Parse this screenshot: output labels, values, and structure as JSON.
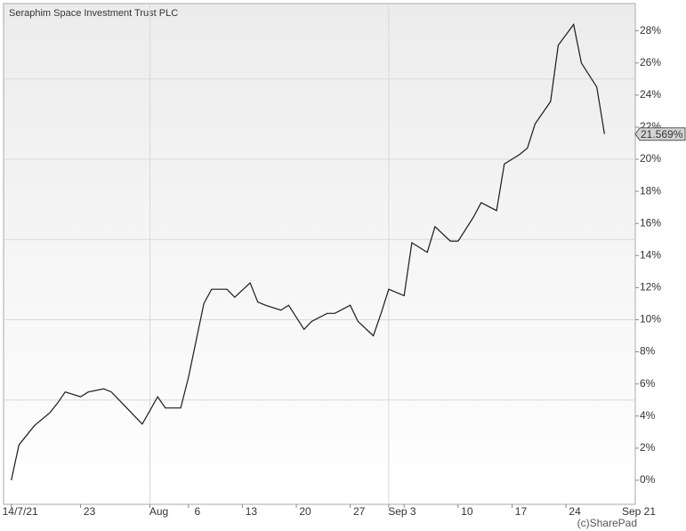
{
  "chart_data": {
    "type": "line",
    "title": "Seraphim Space Investment Trust PLC",
    "credit": "(c)SharePad",
    "x_period_label": "Sep 21",
    "x": [
      "2021-07-14",
      "2021-07-15",
      "2021-07-17",
      "2021-07-19",
      "2021-07-20",
      "2021-07-21",
      "2021-07-23",
      "2021-07-24",
      "2021-07-26",
      "2021-07-27",
      "2021-07-29",
      "2021-07-30",
      "2021-07-31",
      "2021-08-02",
      "2021-08-03",
      "2021-08-05",
      "2021-08-06",
      "2021-08-08",
      "2021-08-09",
      "2021-08-11",
      "2021-08-12",
      "2021-08-14",
      "2021-08-15",
      "2021-08-16",
      "2021-08-18",
      "2021-08-19",
      "2021-08-21",
      "2021-08-22",
      "2021-08-24",
      "2021-08-25",
      "2021-08-27",
      "2021-08-28",
      "2021-08-30",
      "2021-08-31",
      "2021-09-01",
      "2021-09-03",
      "2021-09-04",
      "2021-09-06",
      "2021-09-07",
      "2021-09-09",
      "2021-09-10",
      "2021-09-12",
      "2021-09-13",
      "2021-09-15",
      "2021-09-16",
      "2021-09-18",
      "2021-09-19",
      "2021-09-20",
      "2021-09-22",
      "2021-09-23",
      "2021-09-25",
      "2021-09-26",
      "2021-09-28",
      "2021-09-29"
    ],
    "values": [
      0,
      2.2,
      3.4,
      4.2,
      4.8,
      5.5,
      5.2,
      5.5,
      5.7,
      5.5,
      4.5,
      4.0,
      3.5,
      5.2,
      4.5,
      4.5,
      6.4,
      11.0,
      11.9,
      11.9,
      11.4,
      12.3,
      11.1,
      10.9,
      10.6,
      10.9,
      9.4,
      9.9,
      10.4,
      10.4,
      10.9,
      9.9,
      9.0,
      10.4,
      11.9,
      11.5,
      14.8,
      14.2,
      15.8,
      14.9,
      14.9,
      16.4,
      17.3,
      16.8,
      19.7,
      20.3,
      20.7,
      22.2,
      23.6,
      27.1,
      28.4,
      26.0,
      24.5,
      21.569
    ],
    "last_label": "21.569%",
    "color": "#1a1a1a",
    "xlim": [
      "2021-07-13",
      "2021-10-03"
    ],
    "xticks": [
      {
        "value": "2021-07-14",
        "label": "14/7/21"
      },
      {
        "value": "2021-07-23",
        "label": "23"
      },
      {
        "value": "2021-08-01",
        "label": "Aug"
      },
      {
        "value": "2021-08-06",
        "label": "6"
      },
      {
        "value": "2021-08-13",
        "label": "13"
      },
      {
        "value": "2021-08-20",
        "label": "20"
      },
      {
        "value": "2021-08-27",
        "label": "27"
      },
      {
        "value": "2021-09-01",
        "label": "Sep"
      },
      {
        "value": "2021-09-03",
        "label": "3"
      },
      {
        "value": "2021-09-10",
        "label": "10"
      },
      {
        "value": "2021-09-17",
        "label": "17"
      },
      {
        "value": "2021-09-24",
        "label": "24"
      }
    ],
    "xgrid": [
      "2021-08-01",
      "2021-09-01"
    ],
    "ylim": [
      -1.5,
      29.7
    ],
    "yticks": [
      {
        "value": 0,
        "label": "0%"
      },
      {
        "value": 2,
        "label": "2%"
      },
      {
        "value": 4,
        "label": "4%"
      },
      {
        "value": 6,
        "label": "6%"
      },
      {
        "value": 8,
        "label": "8%"
      },
      {
        "value": 10,
        "label": "10%"
      },
      {
        "value": 12,
        "label": "12%"
      },
      {
        "value": 14,
        "label": "14%"
      },
      {
        "value": 16,
        "label": "16%"
      },
      {
        "value": 18,
        "label": "18%"
      },
      {
        "value": 20,
        "label": "20%"
      },
      {
        "value": 22,
        "label": "22%"
      },
      {
        "value": 24,
        "label": "24%"
      },
      {
        "value": 26,
        "label": "26%"
      },
      {
        "value": 28,
        "label": "28%"
      }
    ],
    "ygrid": [
      5,
      10,
      15,
      20,
      25
    ]
  }
}
